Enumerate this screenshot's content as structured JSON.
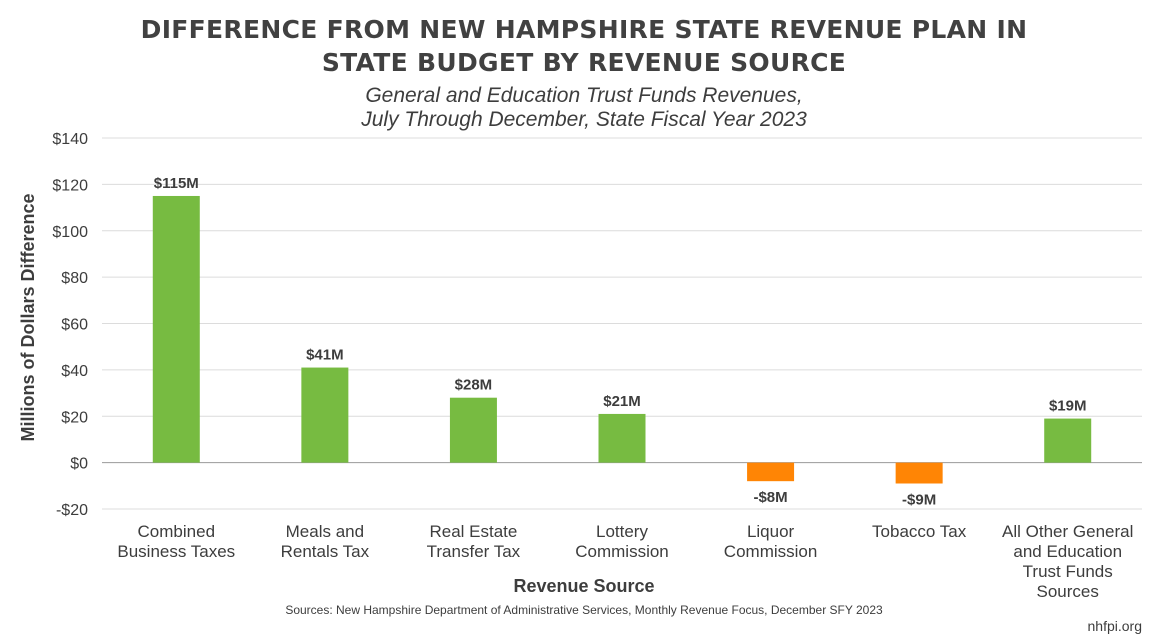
{
  "header": {
    "title_line1": "DIFFERENCE FROM NEW HAMPSHIRE STATE REVENUE PLAN IN",
    "title_line2": "STATE BUDGET BY REVENUE SOURCE",
    "subtitle_line1": "General and Education Trust Funds Revenues,",
    "subtitle_line2": "July Through December, State Fiscal Year 2023"
  },
  "footer": {
    "source": "Sources: New Hampshire Department of Administrative Services, Monthly Revenue Focus, December SFY 2023",
    "credit": "nhfpi.org"
  },
  "colors": {
    "positive": "#77bb41",
    "negative": "#ff8505",
    "grid": "#dcdcdc",
    "axis": "#9a9a9a"
  },
  "chart_data": {
    "type": "bar",
    "title": "DIFFERENCE FROM NEW HAMPSHIRE STATE REVENUE PLAN IN STATE BUDGET BY REVENUE SOURCE",
    "subtitle": "General and Education Trust Funds Revenues, July Through December, State Fiscal Year 2023",
    "xlabel": "Revenue Source",
    "ylabel": "Millions of Dollars Difference",
    "ylim": [
      -20,
      140
    ],
    "yticks": [
      -20,
      0,
      20,
      40,
      60,
      80,
      100,
      120,
      140
    ],
    "ytick_labels": [
      "-$20",
      "$0",
      "$20",
      "$40",
      "$60",
      "$80",
      "$100",
      "$120",
      "$140"
    ],
    "grid": true,
    "legend": "none",
    "categories": [
      [
        "Combined",
        "Business Taxes"
      ],
      [
        "Meals and",
        "Rentals Tax"
      ],
      [
        "Real Estate",
        "Transfer Tax"
      ],
      [
        "Lottery",
        "Commission"
      ],
      [
        "Liquor",
        "Commission"
      ],
      [
        "Tobacco Tax"
      ],
      [
        "All Other General",
        "and Education",
        "Trust Funds",
        "Sources"
      ]
    ],
    "values": [
      115,
      41,
      28,
      21,
      -8,
      -9,
      19
    ],
    "data_labels": [
      "$115M",
      "$41M",
      "$28M",
      "$21M",
      "-$8M",
      "-$9M",
      "$19M"
    ]
  }
}
